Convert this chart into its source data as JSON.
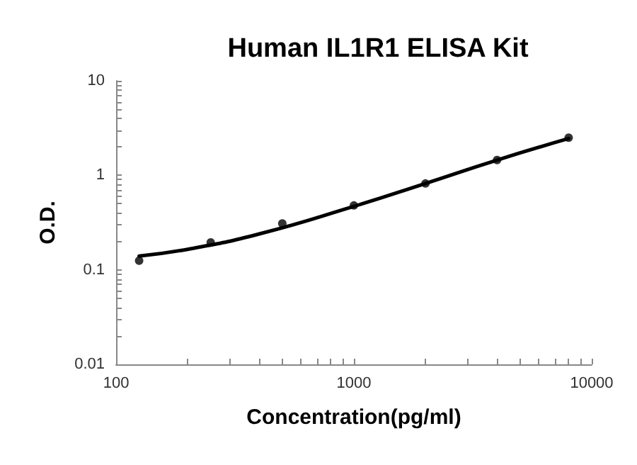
{
  "chart_data": {
    "type": "scatter",
    "title": "Human IL1R1 ELISA Kit",
    "xlabel": "Concentration(pg/ml)",
    "ylabel": "O.D.",
    "log": "xy",
    "grid": false,
    "marker": "circle",
    "xlim": [
      100,
      10000
    ],
    "ylim": [
      0.01,
      10
    ],
    "xticks": [
      100,
      {
        "value": 200,
        "label": null
      },
      {
        "value": 300,
        "label": null
      },
      {
        "value": 400,
        "label": null
      },
      {
        "value": 500,
        "label": null
      },
      {
        "value": 600,
        "label": null
      },
      {
        "value": 700,
        "label": null
      },
      {
        "value": 800,
        "label": null
      },
      {
        "value": 900,
        "label": null
      },
      1000,
      {
        "value": 2000,
        "label": null
      },
      {
        "value": 3000,
        "label": null
      },
      {
        "value": 4000,
        "label": null
      },
      {
        "value": 5000,
        "label": null
      },
      {
        "value": 6000,
        "label": null
      },
      {
        "value": 7000,
        "label": null
      },
      {
        "value": 8000,
        "label": null
      },
      {
        "value": 9000,
        "label": null
      },
      10000
    ],
    "yticks": [
      0.01,
      {
        "value": 0.02,
        "label": null
      },
      {
        "value": 0.03,
        "label": null
      },
      {
        "value": 0.04,
        "label": null
      },
      {
        "value": 0.05,
        "label": null
      },
      {
        "value": 0.06,
        "label": null
      },
      {
        "value": 0.07,
        "label": null
      },
      {
        "value": 0.08,
        "label": null
      },
      {
        "value": 0.09,
        "label": null
      },
      0.1,
      {
        "value": 0.2,
        "label": null
      },
      {
        "value": 0.3,
        "label": null
      },
      {
        "value": 0.4,
        "label": null
      },
      {
        "value": 0.5,
        "label": null
      },
      {
        "value": 0.6,
        "label": null
      },
      {
        "value": 0.7,
        "label": null
      },
      {
        "value": 0.8,
        "label": null
      },
      {
        "value": 0.9,
        "label": null
      },
      1,
      {
        "value": 2,
        "label": null
      },
      {
        "value": 3,
        "label": null
      },
      {
        "value": 4,
        "label": null
      },
      {
        "value": 5,
        "label": null
      },
      {
        "value": 6,
        "label": null
      },
      {
        "value": 7,
        "label": null
      },
      {
        "value": 8,
        "label": null
      },
      {
        "value": 9,
        "label": null
      },
      10
    ],
    "series": [
      {
        "color": "#000000",
        "x": [
          125,
          250,
          500,
          1000,
          2000,
          4000,
          8000
        ],
        "values": [
          0.125,
          0.195,
          0.31,
          0.48,
          0.82,
          1.45,
          2.5
        ]
      },
      {
        "type": "line",
        "color": "#000000",
        "marker": "none",
        "line_style": "solid",
        "x": [
          125,
          200,
          400,
          1000,
          2000,
          4000,
          8000
        ],
        "values": [
          0.14,
          0.165,
          0.24,
          0.47,
          0.82,
          1.45,
          2.45
        ]
      }
    ]
  }
}
